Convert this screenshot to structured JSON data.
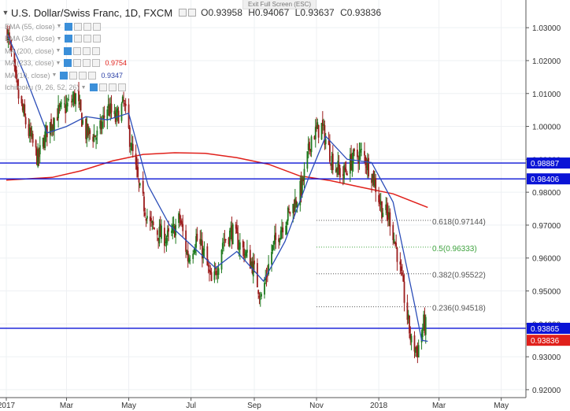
{
  "header": {
    "collapse_icon": "chevron-down-icon",
    "title": "U.S. Dollar/Swiss Franc, 1D, FXCM",
    "open_label": "O",
    "open": "0.93958",
    "high_label": "H",
    "high": "0.94067",
    "low_label": "L",
    "low": "0.93637",
    "close_label": "C",
    "close": "0.93836"
  },
  "exit_fullscreen": "Exit Full Screen (ESC)",
  "studies": [
    {
      "label": "EMA (55, close)",
      "value": "",
      "value_color": ""
    },
    {
      "label": "EMA (34, close)",
      "value": "",
      "value_color": ""
    },
    {
      "label": "MA (200, close)",
      "value": "",
      "value_color": ""
    },
    {
      "label": "MA (233, close)",
      "value": "0.9754",
      "value_color": "#e0201b"
    },
    {
      "label": "MA (10, close)",
      "value": "0.9347",
      "value_color": "#2a3fa6"
    },
    {
      "label": "Ichimoku (9, 26, 52, 26)",
      "value": "",
      "value_color": ""
    }
  ],
  "colors": {
    "up": "#1f7a1f",
    "down": "#9b1c1c",
    "ma_short": "#2b4db8",
    "ma_long": "#e0201b",
    "hline": "#0a14d6",
    "fib": "#555555",
    "fib_50": "#3fa33f",
    "last_price_bg": "#e0201b"
  },
  "chart_data": {
    "type": "candlestick",
    "symbol": "USDCHF",
    "ylim": [
      0.9195,
      1.0365
    ],
    "y_ticks": [
      "1.03000",
      "1.02000",
      "1.01000",
      "1.00000",
      "0.99000",
      "0.98000",
      "0.97000",
      "0.96000",
      "0.95000",
      "0.94000",
      "0.93000",
      "0.92000"
    ],
    "x_ticks": [
      "2017",
      "Mar",
      "May",
      "Jul",
      "Sep",
      "Nov",
      "2018",
      "Mar",
      "May"
    ],
    "x_tick_dates": [
      "2017-01-01",
      "2017-03-01",
      "2017-05-01",
      "2017-07-01",
      "2017-09-01",
      "2017-11-01",
      "2018-01-01",
      "2018-03-01",
      "2018-05-01"
    ],
    "x_range": [
      "2017-01-01",
      "2018-05-19"
    ],
    "grid": true,
    "horizontal_lines": [
      {
        "price": 0.98887,
        "label": "0.98887"
      },
      {
        "price": 0.98406,
        "label": "0.98406"
      },
      {
        "price": 0.93865,
        "label": "0.93865"
      }
    ],
    "last_price": {
      "price": 0.93836,
      "label": "0.93836"
    },
    "fib_levels": [
      {
        "price": 0.97144,
        "label": "0.618(0.97144)"
      },
      {
        "price": 0.96333,
        "label": "0.5(0.96333)"
      },
      {
        "price": 0.95522,
        "label": "0.382(0.95522)"
      },
      {
        "price": 0.94518,
        "label": "0.236(0.94518)"
      }
    ],
    "fib_start_date": "2017-11-01",
    "fib_end_date": "2018-02-10",
    "price_path": [
      [
        "2017-01-02",
        1.029
      ],
      [
        "2017-01-12",
        1.01
      ],
      [
        "2017-01-22",
        0.999
      ],
      [
        "2017-02-01",
        0.99
      ],
      [
        "2017-02-10",
        0.999
      ],
      [
        "2017-02-20",
        1.004
      ],
      [
        "2017-03-01",
        1.006
      ],
      [
        "2017-03-10",
        1.009
      ],
      [
        "2017-03-20",
        0.998
      ],
      [
        "2017-04-01",
        0.997
      ],
      [
        "2017-04-10",
        1.006
      ],
      [
        "2017-04-18",
        1.002
      ],
      [
        "2017-04-26",
        1.007
      ],
      [
        "2017-05-04",
        0.993
      ],
      [
        "2017-05-12",
        0.98
      ],
      [
        "2017-05-22",
        0.97
      ],
      [
        "2017-06-01",
        0.967
      ],
      [
        "2017-06-10",
        0.966
      ],
      [
        "2017-06-20",
        0.972
      ],
      [
        "2017-06-28",
        0.96
      ],
      [
        "2017-07-06",
        0.966
      ],
      [
        "2017-07-14",
        0.961
      ],
      [
        "2017-07-22",
        0.951
      ],
      [
        "2017-08-01",
        0.965
      ],
      [
        "2017-08-10",
        0.968
      ],
      [
        "2017-08-20",
        0.963
      ],
      [
        "2017-08-30",
        0.958
      ],
      [
        "2017-09-08",
        0.948
      ],
      [
        "2017-09-18",
        0.962
      ],
      [
        "2017-09-28",
        0.97
      ],
      [
        "2017-10-08",
        0.975
      ],
      [
        "2017-10-18",
        0.982
      ],
      [
        "2017-10-27",
        0.997
      ],
      [
        "2017-11-06",
        1.0
      ],
      [
        "2017-11-16",
        0.99
      ],
      [
        "2017-11-26",
        0.985
      ],
      [
        "2017-12-06",
        0.99
      ],
      [
        "2017-12-16",
        0.992
      ],
      [
        "2017-12-26",
        0.985
      ],
      [
        "2018-01-04",
        0.975
      ],
      [
        "2018-01-12",
        0.972
      ],
      [
        "2018-01-20",
        0.96
      ],
      [
        "2018-01-27",
        0.946
      ],
      [
        "2018-02-02",
        0.934
      ],
      [
        "2018-02-08",
        0.932
      ],
      [
        "2018-02-14",
        0.94
      ],
      [
        "2018-02-18",
        0.9384
      ]
    ],
    "ma_short_path": [
      [
        "2017-01-02",
        1.028
      ],
      [
        "2017-01-20",
        1.015
      ],
      [
        "2017-02-10",
        0.998
      ],
      [
        "2017-03-01",
        1.0
      ],
      [
        "2017-03-20",
        1.003
      ],
      [
        "2017-04-10",
        1.002
      ],
      [
        "2017-05-01",
        1.004
      ],
      [
        "2017-05-20",
        0.982
      ],
      [
        "2017-06-10",
        0.97
      ],
      [
        "2017-07-01",
        0.964
      ],
      [
        "2017-07-25",
        0.957
      ],
      [
        "2017-08-15",
        0.962
      ],
      [
        "2017-09-10",
        0.953
      ],
      [
        "2017-10-01",
        0.965
      ],
      [
        "2017-10-25",
        0.985
      ],
      [
        "2017-11-10",
        0.997
      ],
      [
        "2017-12-01",
        0.99
      ],
      [
        "2017-12-25",
        0.989
      ],
      [
        "2018-01-15",
        0.977
      ],
      [
        "2018-02-05",
        0.946
      ],
      [
        "2018-02-12",
        0.935
      ],
      [
        "2018-02-18",
        0.9347
      ]
    ],
    "ma_long_path": [
      [
        "2017-01-01",
        0.9837
      ],
      [
        "2017-02-15",
        0.9845
      ],
      [
        "2017-03-15",
        0.9865
      ],
      [
        "2017-04-15",
        0.9895
      ],
      [
        "2017-05-15",
        0.9915
      ],
      [
        "2017-06-15",
        0.992
      ],
      [
        "2017-07-15",
        0.9918
      ],
      [
        "2017-08-15",
        0.9905
      ],
      [
        "2017-09-15",
        0.9885
      ],
      [
        "2017-10-15",
        0.985
      ],
      [
        "2017-11-15",
        0.9835
      ],
      [
        "2017-12-15",
        0.9815
      ],
      [
        "2018-01-15",
        0.9795
      ],
      [
        "2018-02-18",
        0.9754
      ]
    ]
  }
}
